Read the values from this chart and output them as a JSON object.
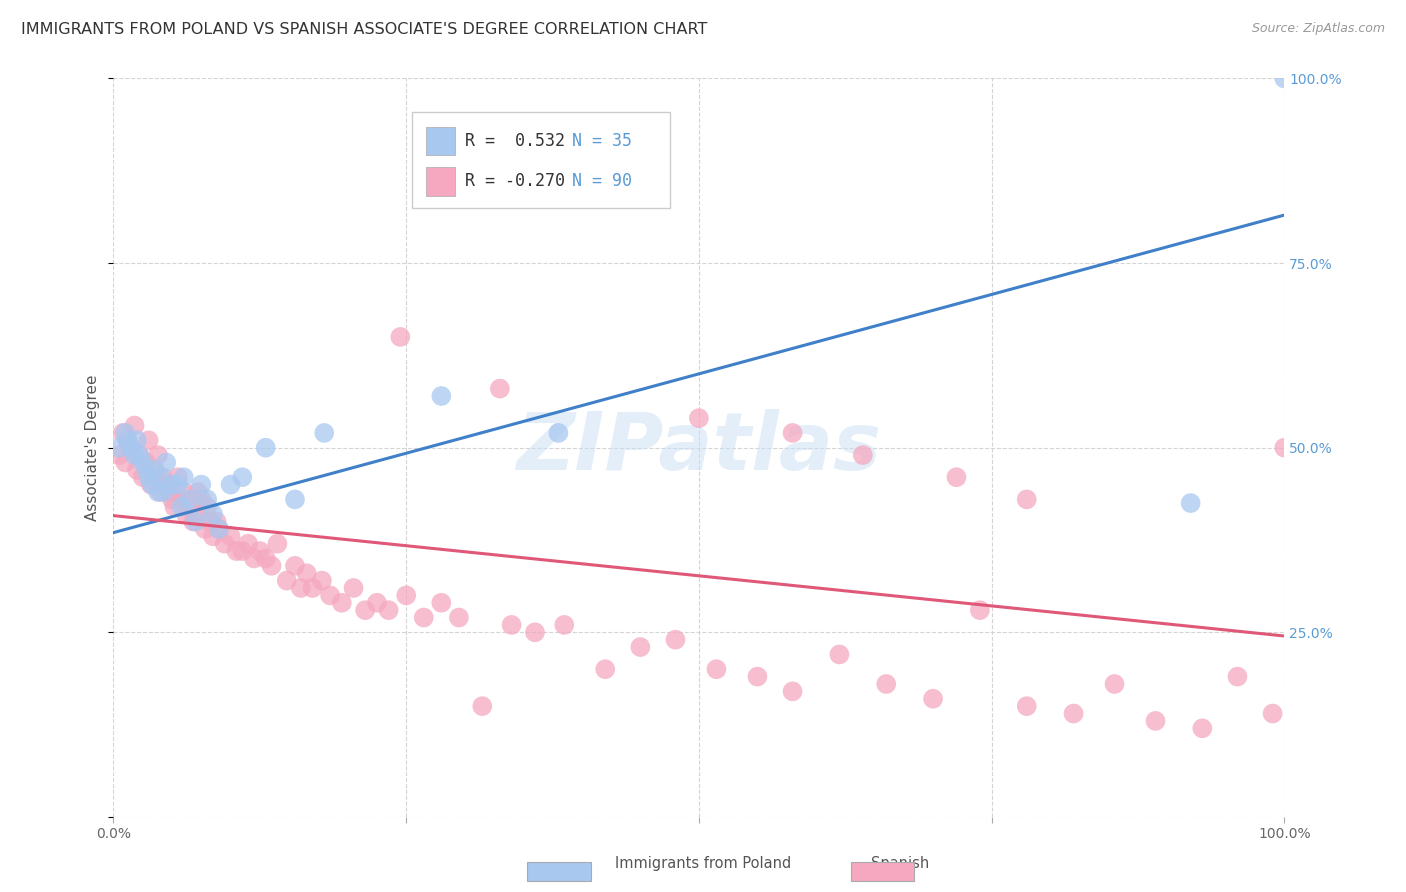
{
  "title": "IMMIGRANTS FROM POLAND VS SPANISH ASSOCIATE'S DEGREE CORRELATION CHART",
  "source": "Source: ZipAtlas.com",
  "ylabel": "Associate's Degree",
  "xlim": [
    0,
    1
  ],
  "ylim": [
    0,
    1
  ],
  "xticks": [
    0.0,
    0.25,
    0.5,
    0.75,
    1.0
  ],
  "yticks": [
    0.0,
    0.25,
    0.5,
    0.75,
    1.0
  ],
  "xticklabels": [
    "0.0%",
    "",
    "",
    "",
    "100.0%"
  ],
  "right_yticklabels": [
    "",
    "25.0%",
    "50.0%",
    "75.0%",
    "100.0%"
  ],
  "poland_color": "#a8c8f0",
  "spanish_color": "#f5a8c0",
  "poland_line_color": "#4080c8",
  "spanish_line_color": "#e05878",
  "poland_R": 0.532,
  "poland_N": 35,
  "spanish_R": -0.27,
  "spanish_N": 90,
  "poland_line_x": [
    0.0,
    1.0
  ],
  "poland_line_y": [
    0.385,
    0.815
  ],
  "spanish_line_x": [
    0.0,
    1.0
  ],
  "spanish_line_y": [
    0.408,
    0.245
  ],
  "poland_scatter_x": [
    0.005,
    0.01,
    0.012,
    0.015,
    0.018,
    0.02,
    0.022,
    0.025,
    0.028,
    0.03,
    0.033,
    0.035,
    0.038,
    0.04,
    0.043,
    0.045,
    0.05,
    0.055,
    0.058,
    0.06,
    0.065,
    0.07,
    0.075,
    0.08,
    0.085,
    0.09,
    0.1,
    0.11,
    0.13,
    0.155,
    0.18,
    0.28,
    0.38,
    0.92,
    1.0
  ],
  "poland_scatter_y": [
    0.5,
    0.52,
    0.51,
    0.5,
    0.49,
    0.51,
    0.49,
    0.48,
    0.47,
    0.46,
    0.45,
    0.47,
    0.44,
    0.46,
    0.44,
    0.48,
    0.45,
    0.45,
    0.42,
    0.46,
    0.43,
    0.4,
    0.45,
    0.43,
    0.41,
    0.39,
    0.45,
    0.46,
    0.5,
    0.43,
    0.52,
    0.57,
    0.52,
    0.425,
    1.0
  ],
  "spanish_scatter_x": [
    0.005,
    0.008,
    0.01,
    0.012,
    0.015,
    0.018,
    0.02,
    0.022,
    0.025,
    0.028,
    0.03,
    0.032,
    0.035,
    0.038,
    0.04,
    0.042,
    0.045,
    0.048,
    0.05,
    0.052,
    0.055,
    0.058,
    0.06,
    0.062,
    0.065,
    0.068,
    0.07,
    0.072,
    0.075,
    0.078,
    0.08,
    0.082,
    0.085,
    0.088,
    0.09,
    0.095,
    0.1,
    0.105,
    0.11,
    0.115,
    0.12,
    0.125,
    0.13,
    0.135,
    0.14,
    0.148,
    0.155,
    0.16,
    0.165,
    0.17,
    0.178,
    0.185,
    0.195,
    0.205,
    0.215,
    0.225,
    0.235,
    0.25,
    0.265,
    0.28,
    0.295,
    0.315,
    0.34,
    0.36,
    0.385,
    0.42,
    0.45,
    0.48,
    0.515,
    0.55,
    0.58,
    0.62,
    0.66,
    0.7,
    0.74,
    0.78,
    0.82,
    0.855,
    0.89,
    0.93,
    0.96,
    0.99,
    0.245,
    0.33,
    0.5,
    0.58,
    0.64,
    0.72,
    0.78,
    1.0
  ],
  "spanish_scatter_y": [
    0.49,
    0.52,
    0.48,
    0.51,
    0.5,
    0.53,
    0.47,
    0.49,
    0.46,
    0.48,
    0.51,
    0.45,
    0.47,
    0.49,
    0.44,
    0.46,
    0.45,
    0.44,
    0.43,
    0.42,
    0.46,
    0.43,
    0.44,
    0.41,
    0.42,
    0.4,
    0.41,
    0.44,
    0.43,
    0.39,
    0.42,
    0.4,
    0.38,
    0.4,
    0.39,
    0.37,
    0.38,
    0.36,
    0.36,
    0.37,
    0.35,
    0.36,
    0.35,
    0.34,
    0.37,
    0.32,
    0.34,
    0.31,
    0.33,
    0.31,
    0.32,
    0.3,
    0.29,
    0.31,
    0.28,
    0.29,
    0.28,
    0.3,
    0.27,
    0.29,
    0.27,
    0.15,
    0.26,
    0.25,
    0.26,
    0.2,
    0.23,
    0.24,
    0.2,
    0.19,
    0.17,
    0.22,
    0.18,
    0.16,
    0.28,
    0.15,
    0.14,
    0.18,
    0.13,
    0.12,
    0.19,
    0.14,
    0.65,
    0.58,
    0.54,
    0.52,
    0.49,
    0.46,
    0.43,
    0.5
  ],
  "watermark_text": "ZIPatlas",
  "background_color": "#ffffff",
  "grid_color": "#d0d0d0",
  "title_fontsize": 11.5,
  "axis_label_fontsize": 11,
  "tick_fontsize": 10,
  "legend_fontsize": 12
}
